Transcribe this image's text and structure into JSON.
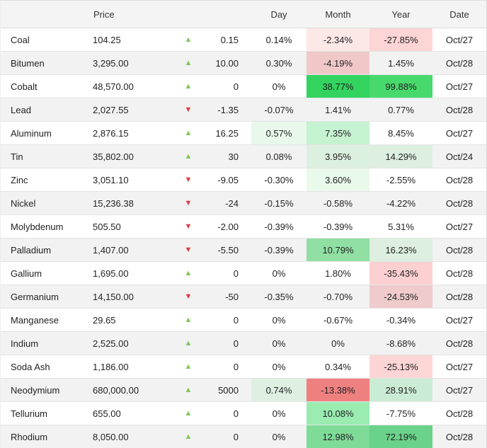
{
  "headers": [
    "",
    "Price",
    "",
    "",
    "Day",
    "Month",
    "Year",
    "Date"
  ],
  "colors": {
    "up": "#7cc85a",
    "down": "#e43a3a"
  },
  "rows": [
    {
      "name": "Coal",
      "price": "104.25",
      "dir": "up",
      "chg": "0.15",
      "day": "0.14%",
      "month": "-2.34%",
      "year": "-27.85%",
      "date": "Oct/27",
      "month_bg": "#fde8e8",
      "year_bg": "#fdd5d5"
    },
    {
      "name": "Bitumen",
      "price": "3,295.00",
      "dir": "up",
      "chg": "10.00",
      "day": "0.30%",
      "month": "-4.19%",
      "year": "1.45%",
      "date": "Oct/28",
      "month_bg": "#f0c8c8"
    },
    {
      "name": "Cobalt",
      "price": "48,570.00",
      "dir": "up",
      "chg": "0",
      "day": "0%",
      "month": "38.77%",
      "year": "99.88%",
      "date": "Oct/27",
      "month_bg": "#33d35f",
      "year_bg": "#48d96d"
    },
    {
      "name": "Lead",
      "price": "2,027.55",
      "dir": "down",
      "chg": "-1.35",
      "day": "-0.07%",
      "month": "1.41%",
      "year": "0.77%",
      "date": "Oct/28"
    },
    {
      "name": "Aluminum",
      "price": "2,876.15",
      "dir": "up",
      "chg": "16.25",
      "day": "0.57%",
      "month": "7.35%",
      "year": "8.45%",
      "date": "Oct/27",
      "day_bg": "#e8f9ec",
      "month_bg": "#c5f2d0"
    },
    {
      "name": "Tin",
      "price": "35,802.00",
      "dir": "up",
      "chg": "30",
      "day": "0.08%",
      "month": "3.95%",
      "year": "14.29%",
      "date": "Oct/24",
      "month_bg": "#dcf0e0",
      "year_bg": "#ddefe1"
    },
    {
      "name": "Zinc",
      "price": "3,051.10",
      "dir": "down",
      "chg": "-9.05",
      "day": "-0.30%",
      "month": "3.60%",
      "year": "-2.55%",
      "date": "Oct/28",
      "month_bg": "#e9f9ec"
    },
    {
      "name": "Nickel",
      "price": "15,236.38",
      "dir": "down",
      "chg": "-24",
      "day": "-0.15%",
      "month": "-0.58%",
      "year": "-4.22%",
      "date": "Oct/28"
    },
    {
      "name": "Molybdenum",
      "price": "505.50",
      "dir": "down",
      "chg": "-2.00",
      "day": "-0.39%",
      "month": "-0.39%",
      "year": "5.31%",
      "date": "Oct/27"
    },
    {
      "name": "Palladium",
      "price": "1,407.00",
      "dir": "down",
      "chg": "-5.50",
      "day": "-0.39%",
      "month": "10.79%",
      "year": "16.23%",
      "date": "Oct/28",
      "month_bg": "#90dfa3",
      "year_bg": "#dcefe0"
    },
    {
      "name": "Gallium",
      "price": "1,695.00",
      "dir": "up",
      "chg": "0",
      "day": "0%",
      "month": "1.80%",
      "year": "-35.43%",
      "date": "Oct/28",
      "year_bg": "#fcd0d0"
    },
    {
      "name": "Germanium",
      "price": "14,150.00",
      "dir": "down",
      "chg": "-50",
      "day": "-0.35%",
      "month": "-0.70%",
      "year": "-24.53%",
      "date": "Oct/28",
      "year_bg": "#f0cbcb"
    },
    {
      "name": "Manganese",
      "price": "29.65",
      "dir": "up",
      "chg": "0",
      "day": "0%",
      "month": "-0.67%",
      "year": "-0.34%",
      "date": "Oct/27"
    },
    {
      "name": "Indium",
      "price": "2,525.00",
      "dir": "up",
      "chg": "0",
      "day": "0%",
      "month": "0%",
      "year": "-8.68%",
      "date": "Oct/28"
    },
    {
      "name": "Soda Ash",
      "price": "1,186.00",
      "dir": "up",
      "chg": "0",
      "day": "0%",
      "month": "0.34%",
      "year": "-25.13%",
      "date": "Oct/27",
      "year_bg": "#fdd5d5"
    },
    {
      "name": "Neodymium",
      "price": "680,000.00",
      "dir": "up",
      "chg": "5000",
      "day": "0.74%",
      "month": "-13.38%",
      "year": "28.91%",
      "date": "Oct/27",
      "day_bg": "#dff0e3",
      "month_bg": "#ef8080",
      "year_bg": "#cbecd4"
    },
    {
      "name": "Tellurium",
      "price": "655.00",
      "dir": "up",
      "chg": "0",
      "day": "0%",
      "month": "10.08%",
      "year": "-7.75%",
      "date": "Oct/28",
      "month_bg": "#9aecb0"
    },
    {
      "name": "Rhodium",
      "price": "8,050.00",
      "dir": "up",
      "chg": "0",
      "day": "0%",
      "month": "12.98%",
      "year": "72.19%",
      "date": "Oct/28",
      "month_bg": "#7fdb98",
      "year_bg": "#6ad28a"
    }
  ]
}
